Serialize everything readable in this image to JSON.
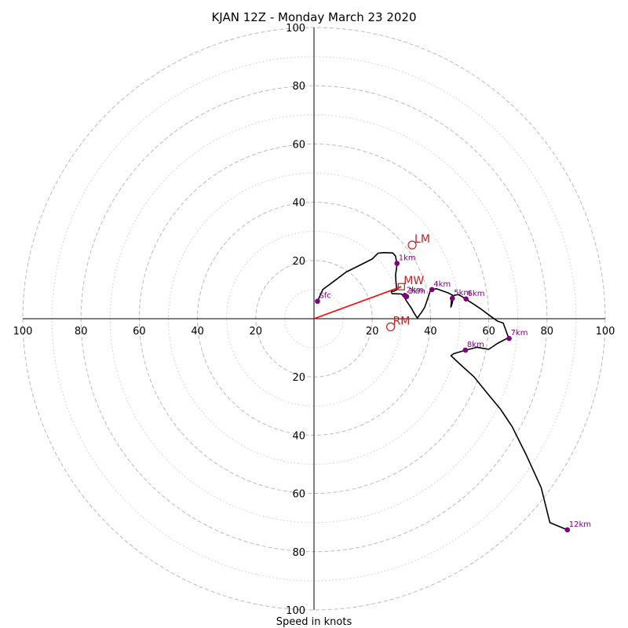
{
  "chart_data": {
    "type": "hodograph",
    "title": "KJAN 12Z - Monday March 23 2020",
    "xlabel": "Speed in knots",
    "range": [
      -100,
      100
    ],
    "ring_major": [
      20,
      40,
      60,
      80,
      100
    ],
    "ring_minor": [
      10,
      30,
      50,
      70,
      90
    ],
    "tick_labels": [
      "100",
      "80",
      "60",
      "40",
      "20",
      "20",
      "40",
      "60",
      "80",
      "100"
    ],
    "tick_values": [
      -100,
      -80,
      -60,
      -40,
      -20,
      20,
      40,
      60,
      80,
      100
    ],
    "colors": {
      "trace": "#000000",
      "heights": "#800080",
      "motion": "#c81e1e",
      "mean_wind_vector": "#ff0000",
      "grid": "#bbbbbb"
    },
    "trace": [
      [
        1.2,
        6
      ],
      [
        3,
        10
      ],
      [
        7,
        13
      ],
      [
        11,
        16
      ],
      [
        16,
        18.5
      ],
      [
        20,
        20.5
      ],
      [
        22,
        22.5
      ],
      [
        24,
        22.7
      ],
      [
        27,
        22.6
      ],
      [
        28,
        21.5
      ],
      [
        28.5,
        18.5
      ],
      [
        28,
        15
      ],
      [
        28.2,
        12
      ],
      [
        28.5,
        10
      ],
      [
        27.5,
        9.5
      ],
      [
        26.5,
        9.4
      ],
      [
        26.8,
        8.6
      ],
      [
        30,
        8.5
      ],
      [
        31,
        7.5
      ],
      [
        31.5,
        6.5
      ],
      [
        32.5,
        5
      ],
      [
        33.5,
        3.5
      ],
      [
        34.5,
        1.7
      ],
      [
        35.5,
        0.2
      ],
      [
        36.3,
        1.4
      ],
      [
        36.8,
        2
      ],
      [
        38,
        3.9
      ],
      [
        39,
        6.8
      ],
      [
        40,
        9.8
      ],
      [
        42,
        10.3
      ],
      [
        44,
        9.6
      ],
      [
        46,
        8.9
      ],
      [
        47.5,
        8.1
      ],
      [
        47.2,
        6.5
      ],
      [
        47,
        4
      ],
      [
        47.5,
        5.5
      ],
      [
        48,
        8
      ],
      [
        49.5,
        8.3
      ],
      [
        51,
        7.5
      ],
      [
        52,
        6.8
      ],
      [
        54.5,
        5.2
      ],
      [
        57.5,
        3.2
      ],
      [
        61,
        0.6
      ],
      [
        63,
        -0.8
      ],
      [
        65,
        -1.5
      ],
      [
        66.8,
        -6.5
      ],
      [
        63,
        -8.5
      ],
      [
        60,
        -10.5
      ],
      [
        56,
        -9.8
      ],
      [
        52,
        -10.8
      ],
      [
        48,
        -12
      ],
      [
        47,
        -12.7
      ],
      [
        50,
        -15.5
      ],
      [
        55,
        -20
      ],
      [
        59,
        -25
      ],
      [
        64,
        -31
      ],
      [
        68,
        -37
      ],
      [
        73,
        -47
      ],
      [
        78,
        -58
      ],
      [
        81,
        -70
      ],
      [
        87,
        -72.5
      ]
    ],
    "height_points": [
      {
        "label": "Sfc",
        "u": 1.2,
        "v": 6
      },
      {
        "label": "1km",
        "u": 28.5,
        "v": 19
      },
      {
        "label": "2km",
        "u": 31.2,
        "v": 8
      },
      {
        "label": "3km",
        "u": 31.8,
        "v": 7.6
      },
      {
        "label": "4km",
        "u": 40.5,
        "v": 10
      },
      {
        "label": "5km",
        "u": 47.5,
        "v": 7
      },
      {
        "label": "6km",
        "u": 52.2,
        "v": 6.8
      },
      {
        "label": "7km",
        "u": 67,
        "v": -6.8
      },
      {
        "label": "8km",
        "u": 52,
        "v": -10.8
      },
      {
        "label": "12km",
        "u": 87,
        "v": -72.5
      }
    ],
    "storm_motions": [
      {
        "label": "LM",
        "u": 33.7,
        "v": 25.3,
        "marker": "circle"
      },
      {
        "label": "MW",
        "u": 30,
        "v": 11,
        "marker": "square"
      },
      {
        "label": "RM",
        "u": 26.3,
        "v": -2.8,
        "marker": "circle"
      }
    ],
    "mean_wind_vector": {
      "u": 30,
      "v": 11
    }
  }
}
